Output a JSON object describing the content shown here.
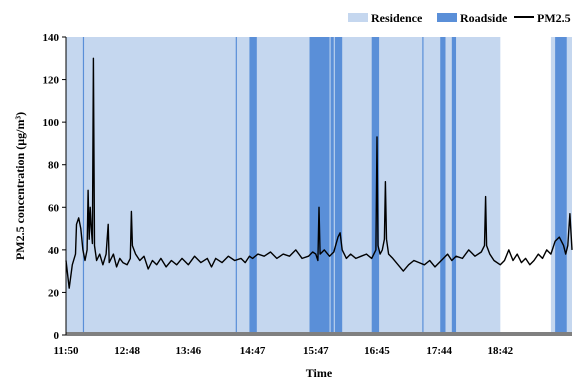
{
  "chart_data": {
    "type": "line",
    "xlabel": "Time",
    "ylabel": "PM2.5 concentration (µg/m³)",
    "ylim": [
      0,
      140
    ],
    "yticks": [
      0,
      20,
      40,
      60,
      80,
      100,
      120,
      140
    ],
    "xlim": [
      "11:50",
      "19:50"
    ],
    "xticks": [
      "11:50",
      "12:48",
      "13:46",
      "14:47",
      "15:47",
      "16:45",
      "17:44",
      "18:42"
    ],
    "grid": false,
    "legend_position": "top-right",
    "colors": {
      "residence": "#c5d7ef",
      "roadside": "#5a8fd8",
      "line": "#000000",
      "baseline": "#808080"
    },
    "legend": [
      {
        "key": "residence",
        "label": "Residence"
      },
      {
        "key": "roadside",
        "label": "Roadside"
      },
      {
        "key": "line",
        "label": "PM2.5"
      }
    ],
    "residence_periods": [
      [
        "11:50",
        "18:42"
      ],
      [
        "19:30",
        "19:50"
      ]
    ],
    "roadside_periods": [
      [
        "12:06",
        "12:07"
      ],
      [
        "14:31",
        "14:32"
      ],
      [
        "14:44",
        "14:51"
      ],
      [
        "15:41",
        "16:00"
      ],
      [
        "16:01",
        "16:04"
      ],
      [
        "16:05",
        "16:12"
      ],
      [
        "16:40",
        "16:47"
      ],
      [
        "17:28",
        "17:29"
      ],
      [
        "17:45",
        "17:50"
      ],
      [
        "17:56",
        "18:00"
      ],
      [
        "19:34",
        "19:45"
      ]
    ],
    "series": [
      {
        "name": "PM2.5",
        "points": [
          [
            "11:50",
            35
          ],
          [
            "11:53",
            22
          ],
          [
            "11:56",
            33
          ],
          [
            "11:59",
            38
          ],
          [
            "12:00",
            52
          ],
          [
            "12:02",
            55
          ],
          [
            "12:04",
            50
          ],
          [
            "12:06",
            40
          ],
          [
            "12:08",
            35
          ],
          [
            "12:10",
            40
          ],
          [
            "12:11",
            68
          ],
          [
            "12:12",
            45
          ],
          [
            "12:13",
            60
          ],
          [
            "12:14",
            50
          ],
          [
            "12:15",
            43
          ],
          [
            "12:16",
            130
          ],
          [
            "12:17",
            42
          ],
          [
            "12:19",
            35
          ],
          [
            "12:22",
            38
          ],
          [
            "12:25",
            33
          ],
          [
            "12:28",
            38
          ],
          [
            "12:30",
            52
          ],
          [
            "12:31",
            34
          ],
          [
            "12:35",
            38
          ],
          [
            "12:38",
            32
          ],
          [
            "12:41",
            36
          ],
          [
            "12:44",
            34
          ],
          [
            "12:48",
            33
          ],
          [
            "12:51",
            36
          ],
          [
            "12:52",
            58
          ],
          [
            "12:53",
            42
          ],
          [
            "12:56",
            38
          ],
          [
            "13:00",
            35
          ],
          [
            "13:04",
            37
          ],
          [
            "13:08",
            31
          ],
          [
            "13:12",
            35
          ],
          [
            "13:16",
            33
          ],
          [
            "13:20",
            36
          ],
          [
            "13:25",
            32
          ],
          [
            "13:30",
            35
          ],
          [
            "13:35",
            33
          ],
          [
            "13:40",
            36
          ],
          [
            "13:46",
            33
          ],
          [
            "13:52",
            37
          ],
          [
            "13:58",
            34
          ],
          [
            "14:04",
            36
          ],
          [
            "14:08",
            32
          ],
          [
            "14:12",
            36
          ],
          [
            "14:18",
            34
          ],
          [
            "14:24",
            37
          ],
          [
            "14:30",
            35
          ],
          [
            "14:36",
            36
          ],
          [
            "14:40",
            34
          ],
          [
            "14:44",
            37
          ],
          [
            "14:47",
            36
          ],
          [
            "14:52",
            38
          ],
          [
            "14:58",
            37
          ],
          [
            "15:04",
            39
          ],
          [
            "15:10",
            36
          ],
          [
            "15:16",
            38
          ],
          [
            "15:22",
            37
          ],
          [
            "15:28",
            40
          ],
          [
            "15:34",
            36
          ],
          [
            "15:40",
            37
          ],
          [
            "15:44",
            39
          ],
          [
            "15:47",
            38
          ],
          [
            "15:49",
            35
          ],
          [
            "15:50",
            60
          ],
          [
            "15:51",
            38
          ],
          [
            "15:55",
            40
          ],
          [
            "16:00",
            37
          ],
          [
            "16:04",
            39
          ],
          [
            "16:08",
            46
          ],
          [
            "16:10",
            48
          ],
          [
            "16:12",
            40
          ],
          [
            "16:16",
            36
          ],
          [
            "16:20",
            38
          ],
          [
            "16:25",
            36
          ],
          [
            "16:30",
            37
          ],
          [
            "16:35",
            38
          ],
          [
            "16:40",
            36
          ],
          [
            "16:44",
            40
          ],
          [
            "16:45",
            93
          ],
          [
            "16:46",
            42
          ],
          [
            "16:48",
            38
          ],
          [
            "16:50",
            40
          ],
          [
            "16:52",
            45
          ],
          [
            "16:53",
            72
          ],
          [
            "16:54",
            45
          ],
          [
            "16:56",
            38
          ],
          [
            "17:00",
            36
          ],
          [
            "17:05",
            33
          ],
          [
            "17:10",
            30
          ],
          [
            "17:15",
            33
          ],
          [
            "17:20",
            35
          ],
          [
            "17:25",
            34
          ],
          [
            "17:30",
            33
          ],
          [
            "17:35",
            35
          ],
          [
            "17:40",
            32
          ],
          [
            "17:44",
            34
          ],
          [
            "17:48",
            36
          ],
          [
            "17:52",
            38
          ],
          [
            "17:56",
            35
          ],
          [
            "18:00",
            37
          ],
          [
            "18:06",
            36
          ],
          [
            "18:12",
            40
          ],
          [
            "18:18",
            37
          ],
          [
            "18:24",
            39
          ],
          [
            "18:27",
            42
          ],
          [
            "18:28",
            65
          ],
          [
            "18:29",
            42
          ],
          [
            "18:32",
            38
          ],
          [
            "18:36",
            35
          ],
          [
            "18:42",
            33
          ],
          [
            "18:46",
            35
          ],
          [
            "18:50",
            40
          ],
          [
            "18:54",
            35
          ],
          [
            "18:58",
            38
          ],
          [
            "19:02",
            34
          ],
          [
            "19:06",
            36
          ],
          [
            "19:10",
            33
          ],
          [
            "19:14",
            35
          ],
          [
            "19:18",
            38
          ],
          [
            "19:22",
            36
          ],
          [
            "19:26",
            40
          ],
          [
            "19:30",
            38
          ],
          [
            "19:34",
            44
          ],
          [
            "19:38",
            46
          ],
          [
            "19:42",
            42
          ],
          [
            "19:44",
            38
          ],
          [
            "19:46",
            42
          ],
          [
            "19:48",
            57
          ],
          [
            "19:50",
            40
          ]
        ]
      }
    ]
  }
}
